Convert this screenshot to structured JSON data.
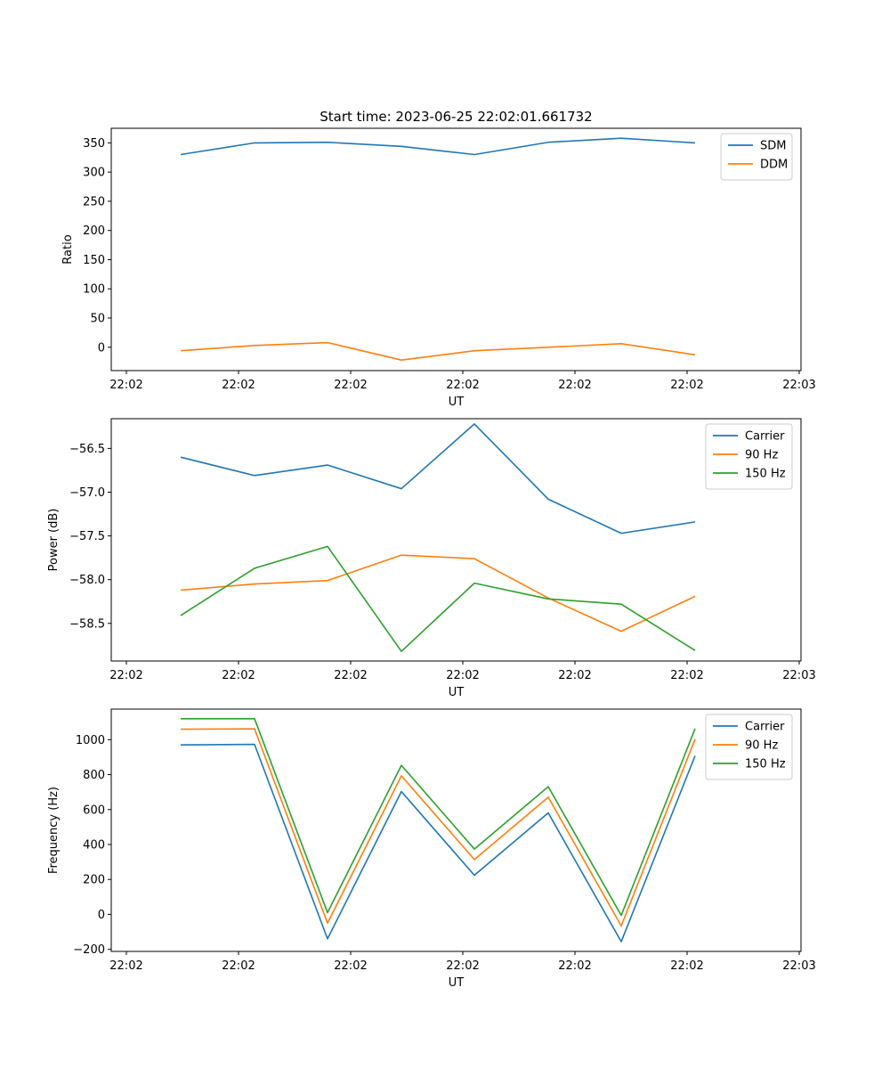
{
  "chart_data": [
    {
      "type": "line",
      "title": "Start time: 2023-06-25 22:02:01.661732",
      "xlabel": "UT",
      "ylabel": "Ratio",
      "x_tick_labels": [
        "22:02",
        "22:02",
        "22:02",
        "22:02",
        "22:02",
        "22:02",
        "22:03"
      ],
      "y_ticks": [
        0,
        50,
        100,
        150,
        200,
        250,
        300,
        350
      ],
      "y_tick_labels": [
        "0",
        "50",
        "100",
        "150",
        "200",
        "250",
        "300",
        "350"
      ],
      "ylim": [
        -40,
        375
      ],
      "legend_position": "upper right",
      "series": [
        {
          "name": "SDM",
          "color": "#1f77b4",
          "values": [
            330,
            350,
            351,
            344,
            330,
            351,
            358,
            350
          ]
        },
        {
          "name": "DDM",
          "color": "#ff7f0e",
          "values": [
            -6,
            3,
            8,
            -22,
            -6,
            0,
            6,
            -13
          ]
        }
      ]
    },
    {
      "type": "line",
      "title": "",
      "xlabel": "UT",
      "ylabel": "Power (dB)",
      "x_tick_labels": [
        "22:02",
        "22:02",
        "22:02",
        "22:02",
        "22:02",
        "22:02",
        "22:03"
      ],
      "y_ticks": [
        -58.5,
        -58.0,
        -57.5,
        -57.0,
        -56.5
      ],
      "y_tick_labels": [
        "−58.5",
        "−58.0",
        "−57.5",
        "−57.0",
        "−56.5"
      ],
      "ylim": [
        -58.93,
        -56.16
      ],
      "legend_position": "upper right",
      "series": [
        {
          "name": "Carrier",
          "color": "#1f77b4",
          "values": [
            -56.6,
            -56.81,
            -56.69,
            -56.96,
            -56.22,
            -57.08,
            -57.47,
            -57.34
          ]
        },
        {
          "name": "90 Hz",
          "color": "#ff7f0e",
          "values": [
            -58.12,
            -58.05,
            -58.01,
            -57.72,
            -57.76,
            -58.21,
            -58.59,
            -58.19
          ]
        },
        {
          "name": "150 Hz",
          "color": "#2ca02c",
          "values": [
            -58.41,
            -57.87,
            -57.62,
            -58.82,
            -58.04,
            -58.22,
            -58.28,
            -58.81
          ]
        }
      ]
    },
    {
      "type": "line",
      "title": "",
      "xlabel": "UT",
      "ylabel": "Frequency (Hz)",
      "x_tick_labels": [
        "22:02",
        "22:02",
        "22:02",
        "22:02",
        "22:02",
        "22:02",
        "22:03"
      ],
      "y_ticks": [
        -200,
        0,
        200,
        400,
        600,
        800,
        1000
      ],
      "y_tick_labels": [
        "−200",
        "0",
        "200",
        "400",
        "600",
        "800",
        "1000"
      ],
      "ylim": [
        -212,
        1175
      ],
      "legend_position": "upper right",
      "series": [
        {
          "name": "Carrier",
          "color": "#1f77b4",
          "values": [
            970,
            973,
            -140,
            703,
            224,
            581,
            -156,
            908
          ]
        },
        {
          "name": "90 Hz",
          "color": "#ff7f0e",
          "values": [
            1060,
            1062,
            -50,
            793,
            314,
            671,
            -66,
            1003
          ]
        },
        {
          "name": "150 Hz",
          "color": "#2ca02c",
          "values": [
            1120,
            1120,
            10,
            853,
            374,
            731,
            -6,
            1063
          ]
        }
      ]
    }
  ]
}
